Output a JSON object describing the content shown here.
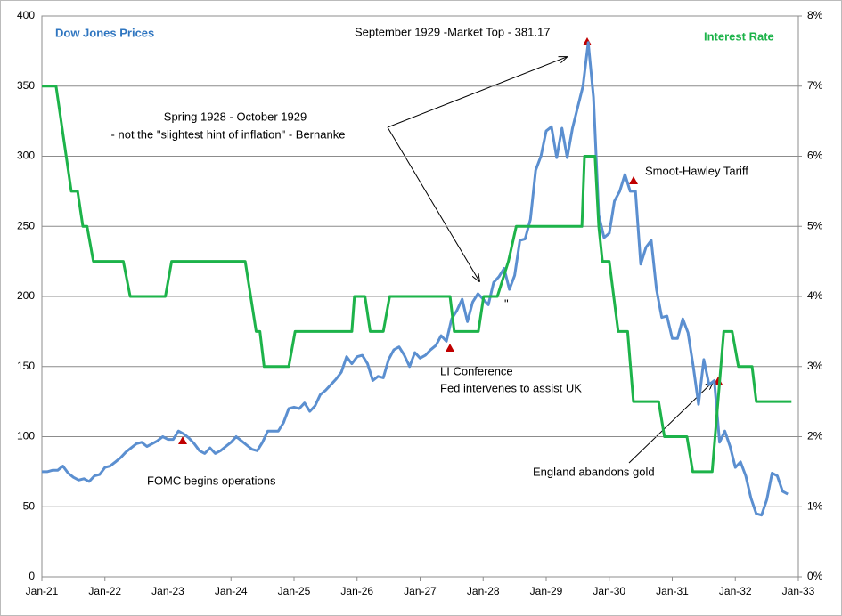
{
  "chart_data": {
    "type": "line",
    "series": [
      {
        "name": "Dow Jones Prices",
        "color": "#5b8fd0",
        "axis": "y",
        "x": [
          0,
          1,
          2,
          3,
          4,
          5,
          6,
          7,
          8,
          9,
          10,
          11,
          12,
          13,
          14,
          15,
          16,
          17,
          18,
          19,
          20,
          21,
          22,
          23,
          24,
          25,
          26,
          27,
          28,
          29,
          30,
          31,
          32,
          33,
          34,
          35,
          36,
          37,
          38,
          39,
          40,
          41,
          42,
          43,
          44,
          45,
          46,
          47,
          48,
          49,
          50,
          51,
          52,
          53,
          54,
          55,
          56,
          57,
          58,
          59,
          60,
          61,
          62,
          63,
          64,
          65,
          66,
          67,
          68,
          69,
          70,
          71,
          72,
          73,
          74,
          75,
          76,
          77,
          78,
          79,
          80,
          81,
          82,
          83,
          84,
          85,
          86,
          87,
          88,
          89,
          90,
          91,
          92,
          93,
          94,
          95,
          96,
          97,
          98,
          99,
          100,
          101,
          102,
          103,
          104,
          105,
          106,
          107,
          108,
          109,
          110,
          111,
          112,
          113,
          114,
          115,
          116,
          117,
          118,
          119,
          120,
          121,
          122,
          123,
          124,
          125,
          126,
          127,
          128,
          129,
          130,
          131,
          132,
          133,
          134,
          135,
          136,
          137,
          138,
          139,
          140,
          141,
          142
        ],
        "values": [
          75,
          75,
          76,
          76,
          79,
          74,
          71,
          69,
          70,
          68,
          72,
          73,
          78,
          79,
          82,
          85,
          89,
          92,
          95,
          96,
          93,
          95,
          97,
          100,
          98,
          98,
          104,
          102,
          99,
          95,
          90,
          88,
          92,
          88,
          90,
          93,
          96,
          100,
          97,
          94,
          91,
          90,
          96,
          104,
          104,
          104,
          110,
          120,
          121,
          120,
          124,
          118,
          122,
          130,
          133,
          137,
          141,
          146,
          157,
          152,
          157,
          158,
          152,
          140,
          143,
          142,
          155,
          162,
          164,
          158,
          150,
          160,
          156,
          158,
          162,
          165,
          172,
          168,
          184,
          190,
          198,
          182,
          196,
          202,
          198,
          194,
          210,
          214,
          220,
          205,
          215,
          240,
          241,
          255,
          290,
          300,
          318,
          321,
          299,
          320,
          299,
          320,
          335,
          350,
          381.17,
          342,
          258,
          242,
          245,
          268,
          275,
          287,
          275,
          275,
          223,
          235,
          240,
          205,
          185,
          186,
          170,
          170,
          184,
          174,
          150,
          123,
          155,
          137,
          140,
          96,
          104,
          93,
          78,
          82,
          72,
          56,
          45,
          44,
          55,
          74,
          72,
          61,
          59
        ]
      },
      {
        "name": "Interest Rate",
        "color": "#1db34a",
        "axis": "y2",
        "x": [
          0,
          2.7,
          5.6,
          6.8,
          7.8,
          8.6,
          9.8,
          15.5,
          16.8,
          23.5,
          24.7,
          38.7,
          40.8,
          41.5,
          42.3,
          47,
          48.2,
          59,
          59.5,
          61.5,
          62.5,
          65,
          66.2,
          77.7,
          78.5,
          83.1,
          84.1,
          86.7,
          88.8,
          90.3,
          102.8,
          103.3,
          105.3,
          106,
          106.7,
          108,
          109.7,
          111.5,
          112.6,
          117.4,
          118.5,
          122.8,
          123.9,
          127.6,
          129.8,
          131.4,
          132.6,
          135.2,
          136,
          142.7
        ],
        "values": [
          7,
          7,
          5.5,
          5.5,
          5,
          5,
          4.5,
          4.5,
          4,
          4,
          4.5,
          4.5,
          3.5,
          3.5,
          3,
          3,
          3.5,
          3.5,
          4,
          4,
          3.5,
          3.5,
          4,
          4,
          3.5,
          3.5,
          4,
          4,
          4.5,
          5,
          5,
          6,
          6,
          5,
          4.5,
          4.5,
          3.5,
          3.5,
          2.5,
          2.5,
          2,
          2,
          1.5,
          1.5,
          3.5,
          3.5,
          3,
          3,
          2.5,
          2.5
        ]
      }
    ],
    "xlim": [
      0,
      144
    ],
    "xticks": [
      {
        "value": 0,
        "label": "Jan-21"
      },
      {
        "value": 12,
        "label": "Jan-22"
      },
      {
        "value": 24,
        "label": "Jan-23"
      },
      {
        "value": 36,
        "label": "Jan-24"
      },
      {
        "value": 48,
        "label": "Jan-25"
      },
      {
        "value": 60,
        "label": "Jan-26"
      },
      {
        "value": 72,
        "label": "Jan-27"
      },
      {
        "value": 84,
        "label": "Jan-28"
      },
      {
        "value": 96,
        "label": "Jan-29"
      },
      {
        "value": 108,
        "label": "Jan-30"
      },
      {
        "value": 120,
        "label": "Jan-31"
      },
      {
        "value": 132,
        "label": "Jan-32"
      },
      {
        "value": 144,
        "label": "Jan-33"
      }
    ],
    "ylim": [
      0,
      400
    ],
    "yticks": [
      0,
      50,
      100,
      150,
      200,
      250,
      300,
      350,
      400
    ],
    "y2lim": [
      0,
      8
    ],
    "y2ticks": [
      {
        "value": 0,
        "label": "0%"
      },
      {
        "value": 1,
        "label": "1%"
      },
      {
        "value": 2,
        "label": "2%"
      },
      {
        "value": 3,
        "label": "3%"
      },
      {
        "value": 4,
        "label": "4%"
      },
      {
        "value": 5,
        "label": "5%"
      },
      {
        "value": 6,
        "label": "6%"
      },
      {
        "value": 7,
        "label": "7%"
      },
      {
        "value": 8,
        "label": "8%"
      }
    ],
    "grid": true,
    "annotations": [
      "September 1929  -Market Top - 381.17",
      "Spring 1928  - October 1929",
      "- not the \"slightest hint of inflation\" - Bernanke",
      "Smoot-Hawley Tariff",
      "LI Conference",
      "Fed intervenes to assist UK",
      "FOMC begins operations",
      "England abandons gold",
      "\""
    ]
  }
}
